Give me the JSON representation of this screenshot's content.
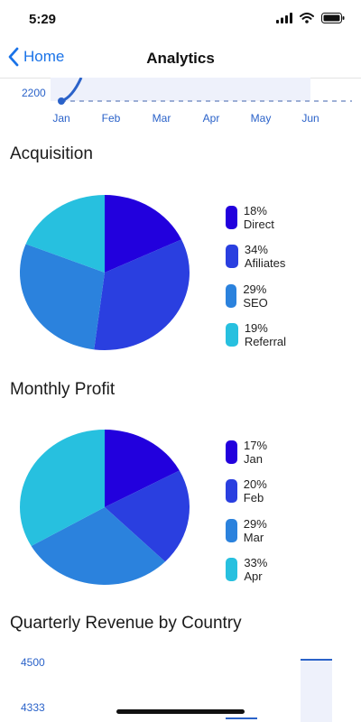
{
  "status": {
    "time": "5:29"
  },
  "nav": {
    "back_label": "Home",
    "title": "Analytics"
  },
  "line_chart_fragment": {
    "y_tick": "2200",
    "x_ticks": [
      "Jan",
      "Feb",
      "Mar",
      "Apr",
      "May",
      "Jun"
    ],
    "line_color": "#2a62c9"
  },
  "colors": {
    "c1": "#2200dd",
    "c2": "#2a3fe0",
    "c3": "#2b82dd",
    "c4": "#27c0df"
  },
  "chart_data": [
    {
      "type": "pie",
      "title": "Acquisition",
      "labels": [
        "Direct",
        "Afiliates",
        "SEO",
        "Referral"
      ],
      "values": [
        18,
        34,
        29,
        19
      ],
      "legend": [
        "18% Direct",
        "34% Afiliates",
        "29% SEO",
        "19% Referral"
      ],
      "colors": [
        "#2200dd",
        "#2a3fe0",
        "#2b82dd",
        "#27c0df"
      ]
    },
    {
      "type": "pie",
      "title": "Monthly Profit",
      "labels": [
        "Jan",
        "Feb",
        "Mar",
        "Apr"
      ],
      "values": [
        17,
        20,
        29,
        33
      ],
      "legend": [
        "17% Jan",
        "20% Feb",
        "29% Mar",
        "33% Apr"
      ],
      "colors": [
        "#2200dd",
        "#2a3fe0",
        "#2b82dd",
        "#27c0df"
      ]
    },
    {
      "type": "bar",
      "title": "Quarterly Revenue by Country",
      "y_ticks": [
        "4500",
        "4333"
      ]
    }
  ]
}
